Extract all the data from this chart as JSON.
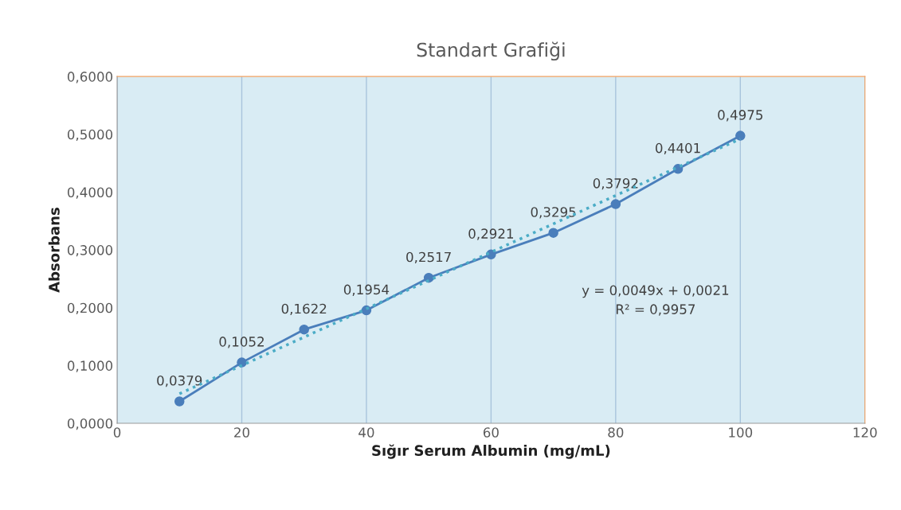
{
  "chart_data": {
    "type": "line",
    "title": "Standart Grafiği",
    "xlabel": "Sığır Serum Albumin (mg/mL)",
    "ylabel": "Absorbans",
    "x": [
      10,
      20,
      30,
      40,
      50,
      60,
      70,
      80,
      90,
      100
    ],
    "series": [
      {
        "color": "#4a7ebb",
        "values": [
          0.0379,
          0.1052,
          0.1622,
          0.1954,
          0.2517,
          0.2921,
          0.3295,
          0.3792,
          0.4401,
          0.4975
        ],
        "marker": "circle",
        "line_style": "solid",
        "value_labels": [
          "0,0379",
          "0,1052",
          "0,1622",
          "0,1954",
          "0,2517",
          "0,2921",
          "0,3295",
          "0,3792",
          "0,4401",
          "0,4975"
        ]
      },
      {
        "type": "line",
        "color": "#4bacc6",
        "x": [
          10,
          100
        ],
        "values": [
          0.0511,
          0.4921
        ],
        "marker": "none",
        "line_style": "dotted"
      }
    ],
    "xlim": [
      0,
      120
    ],
    "xticks": [
      0,
      20,
      40,
      60,
      80,
      100,
      120
    ],
    "ylim": [
      0,
      0.6
    ],
    "yticks": [
      {
        "value": 0,
        "label": "0,0000"
      },
      {
        "value": 0.1,
        "label": "0,1000"
      },
      {
        "value": 0.2,
        "label": "0,2000"
      },
      {
        "value": 0.3,
        "label": "0,3000"
      },
      {
        "value": 0.4,
        "label": "0,4000"
      },
      {
        "value": 0.5,
        "label": "0,5000"
      },
      {
        "value": 0.6,
        "label": "0,6000"
      }
    ],
    "grid": "x",
    "legend": false,
    "annotations": [
      "y = 0,0049x + 0,0021",
      "R² = 0,9957"
    ]
  }
}
